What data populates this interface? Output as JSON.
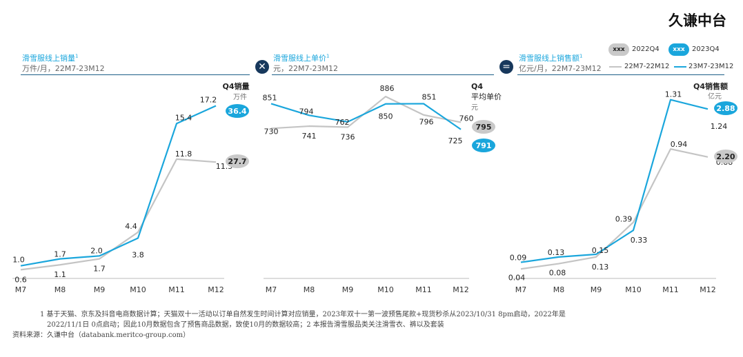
{
  "brand": "久谦中台",
  "legend": {
    "q4_2022_pill": "xxx",
    "q4_2022_label": "2022Q4",
    "q4_2023_pill": "xxx",
    "q4_2023_label": "2023Q4",
    "line_2022_label": "22M7-22M12",
    "line_2023_label": "23M7-23M12"
  },
  "operators": {
    "multiply": "✕",
    "equals": "="
  },
  "panels": [
    {
      "title": "滑雪服线上销量",
      "sup": "1",
      "subtitle": "万件/月，22M7-23M12"
    },
    {
      "title": "滑雪服线上单价",
      "sup": "1",
      "subtitle": "元，22M7-23M12"
    },
    {
      "title": "滑雪服线上销售额",
      "sup": "1",
      "subtitle": "亿元/月，22M7-23M12"
    }
  ],
  "chart_data": [
    {
      "type": "line",
      "categories": [
        "M7",
        "M8",
        "M9",
        "M10",
        "M11",
        "M12"
      ],
      "series": [
        {
          "name": "22M7-22M12",
          "color": "#c4c4c4",
          "values": [
            0.6,
            1.1,
            1.7,
            4.4,
            11.8,
            11.5
          ],
          "labels": [
            "0.6",
            "1.1",
            "1.7",
            "4.4",
            "11.8",
            "11.5"
          ]
        },
        {
          "name": "23M7-23M12",
          "color": "#1aa6dc",
          "values": [
            1.0,
            1.7,
            2.0,
            3.8,
            15.4,
            17.2
          ],
          "labels": [
            "1.0",
            "1.7",
            "2.0",
            "3.8",
            "15.4",
            "17.2"
          ]
        }
      ],
      "ylim": [
        0,
        18
      ],
      "q4_title": "Q4销量",
      "q4_unit": "万件",
      "q4_2022": "27.7",
      "q4_2023": "36.4"
    },
    {
      "type": "line",
      "categories": [
        "M7",
        "M8",
        "M9",
        "M10",
        "M11",
        "M12"
      ],
      "series": [
        {
          "name": "22M7-22M12",
          "color": "#c4c4c4",
          "values": [
            730,
            741,
            736,
            886,
            796,
            760
          ],
          "labels": [
            "730",
            "741",
            "736",
            "886",
            "796",
            "760"
          ]
        },
        {
          "name": "23M7-23M12",
          "color": "#1aa6dc",
          "values": [
            851,
            794,
            762,
            850,
            851,
            725
          ],
          "labels": [
            "851",
            "794",
            "762",
            "850",
            "851",
            "725"
          ]
        }
      ],
      "ylim": [
        650,
        920
      ],
      "q4_title": "Q4",
      "q4_subtitle": "平均单价",
      "q4_unit": "元",
      "q4_2022": "795",
      "q4_2023": "791"
    },
    {
      "type": "line",
      "categories": [
        "M7",
        "M8",
        "M9",
        "M10",
        "M11",
        "M12"
      ],
      "series": [
        {
          "name": "22M7-22M12",
          "color": "#c4c4c4",
          "values": [
            0.04,
            0.08,
            0.13,
            0.39,
            0.94,
            0.88
          ],
          "labels": [
            "0.04",
            "0.08",
            "0.13",
            "0.39",
            "0.94",
            "0.88"
          ]
        },
        {
          "name": "23M7-23M12",
          "color": "#1aa6dc",
          "values": [
            0.09,
            0.13,
            0.15,
            0.33,
            1.31,
            1.24
          ],
          "labels": [
            "0.09",
            "0.13",
            "0.15",
            "0.33",
            "1.31",
            "1.24"
          ]
        }
      ],
      "ylim": [
        0,
        1.36
      ],
      "q4_title": "Q4销售额",
      "q4_unit": "亿元",
      "q4_2022": "2.20",
      "q4_2023": "2.88"
    }
  ],
  "footnotes": {
    "line1": "1  基于天猫、京东及抖音电商数据计算；天猫双十一活动以订单自然发生时间计算对应销量，2023年双十一第一波预售尾款+现货秒杀从2023/10/31 8pm启动，2022年是",
    "line2": "2022/11/1日 0点启动；因此10月数据包含了预售商品数据，致使10月的数据较高；2 本报告滑雪服品类关注滑雪衣、裤以及套装",
    "source": "资料来源：久谦中台（databank.meritco-group.com）"
  }
}
